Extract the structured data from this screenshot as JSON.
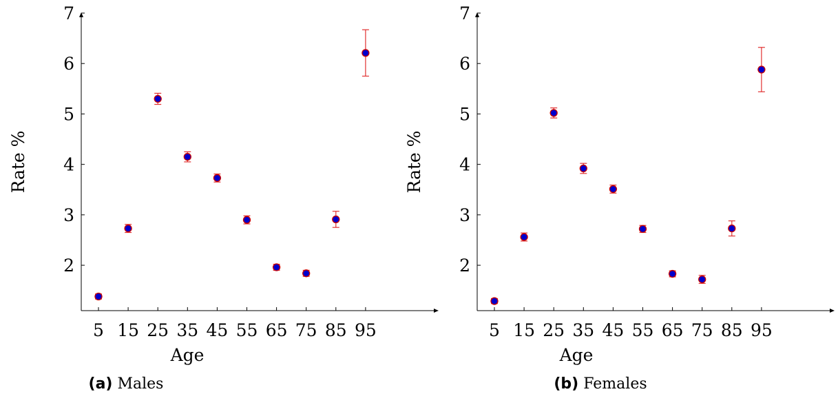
{
  "chart_data": [
    {
      "type": "scatter",
      "panel": "a",
      "caption_tag": "(a)",
      "caption_text": "Males",
      "title": "",
      "xlabel": "Age",
      "ylabel": "Rate %",
      "x": [
        5,
        15,
        25,
        35,
        45,
        55,
        65,
        75,
        85,
        95
      ],
      "y": [
        1.38,
        2.73,
        5.3,
        4.15,
        3.73,
        2.9,
        1.96,
        1.84,
        2.91,
        6.21
      ],
      "err": [
        0.05,
        0.08,
        0.11,
        0.1,
        0.08,
        0.08,
        0.06,
        0.06,
        0.16,
        0.46
      ],
      "xticks": [
        "5",
        "15",
        "25",
        "35",
        "45",
        "55",
        "65",
        "75",
        "85",
        "95"
      ],
      "yticks": [
        "2",
        "3",
        "4",
        "5",
        "6",
        "7"
      ],
      "ylim": [
        1.1,
        7.0
      ],
      "marker_color": "#0000cc",
      "marker_edge": "#cc0000",
      "error_color": "#e03030",
      "grid": false,
      "legend": "none"
    },
    {
      "type": "scatter",
      "panel": "b",
      "caption_tag": "(b)",
      "caption_text": "Females",
      "title": "",
      "xlabel": "Age",
      "ylabel": "Rate %",
      "x": [
        5,
        15,
        25,
        35,
        45,
        55,
        65,
        75,
        85,
        95
      ],
      "y": [
        1.29,
        2.56,
        5.02,
        3.92,
        3.51,
        2.72,
        1.83,
        1.72,
        2.73,
        5.88
      ],
      "err": [
        0.05,
        0.08,
        0.1,
        0.1,
        0.08,
        0.07,
        0.06,
        0.08,
        0.15,
        0.44
      ],
      "xticks": [
        "5",
        "15",
        "25",
        "35",
        "45",
        "55",
        "65",
        "75",
        "85",
        "95"
      ],
      "yticks": [
        "2",
        "3",
        "4",
        "5",
        "6",
        "7"
      ],
      "ylim": [
        1.1,
        7.0
      ],
      "marker_color": "#0000cc",
      "marker_edge": "#cc0000",
      "error_color": "#e03030",
      "grid": false,
      "legend": "none"
    }
  ]
}
